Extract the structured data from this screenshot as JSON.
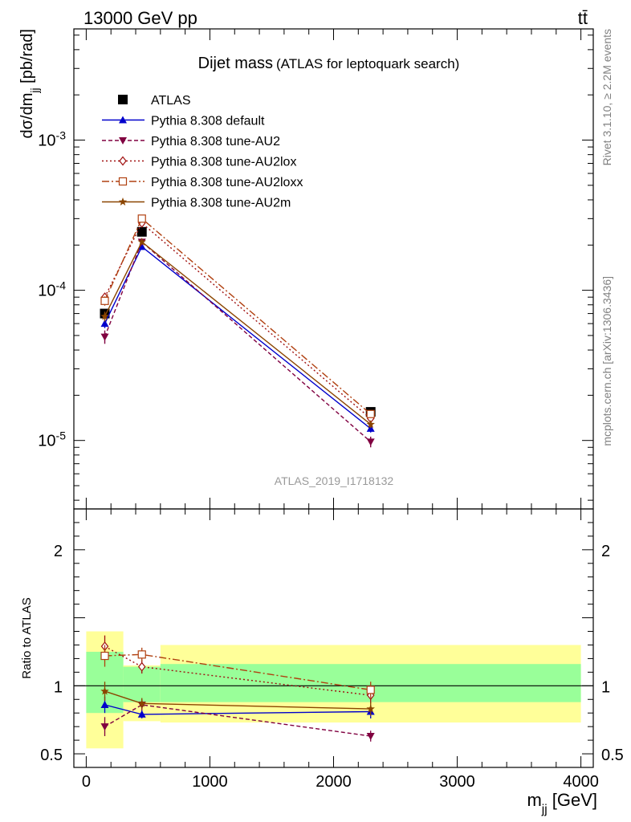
{
  "header": {
    "energy_label": "13000 GeV pp",
    "process_label": "tt̄"
  },
  "side_labels": {
    "rivet": "Rivet 3.1.10, ≥ 2.2M events",
    "source": "mcplots.cern.ch [arXiv:1306.3436]"
  },
  "watermark": "ATLAS_2019_I1718132",
  "colors": {
    "data": "#000000",
    "default": "#0000cc",
    "au2": "#800040",
    "au2lox": "#a01010",
    "au2loxx": "#b04010",
    "au2m": "#8b4500",
    "band_inner": "#99ff99",
    "band_outer": "#ffff99"
  },
  "chart_data": [
    {
      "type": "line",
      "title": "Dijet mass",
      "subtitle": "(ATLAS for leptoquark search)",
      "xlabel": "m_jj [GeV]",
      "ylabel": "dσ/dm_jj [pb/rad]",
      "yscale": "log",
      "xlim": [
        -100,
        4100
      ],
      "ylim": [
        3.5e-06,
        0.0055
      ],
      "y_ticks": [
        "10^-5",
        "10^-4",
        "10^-3"
      ],
      "x": [
        150,
        450,
        2300
      ],
      "series": [
        {
          "name": "ATLAS",
          "style": "data",
          "values": [
            7e-05,
            0.000245,
            1.55e-05
          ],
          "err_low": [
            0,
            0,
            0
          ],
          "err_high": [
            0,
            0,
            0
          ]
        },
        {
          "name": "Pythia 8.308 default",
          "style": "default",
          "values": [
            6e-05,
            0.000195,
            1.2e-05
          ],
          "err_low": [
            4e-06,
            7e-06,
            7e-07
          ],
          "err_high": [
            4e-06,
            7e-06,
            7e-07
          ]
        },
        {
          "name": "Pythia 8.308 tune-AU2",
          "style": "au2",
          "values": [
            4.9e-05,
            0.00021,
            9.8e-06
          ],
          "err_low": [
            5e-06,
            8e-06,
            8e-07
          ],
          "err_high": [
            5e-06,
            8e-06,
            8e-07
          ]
        },
        {
          "name": "Pythia 8.308 tune-AU2lox",
          "style": "au2lox",
          "values": [
            9e-05,
            0.00028,
            1.4e-05
          ],
          "err_low": [
            6e-06,
            1e-05,
            8e-07
          ],
          "err_high": [
            6e-06,
            1e-05,
            8e-07
          ]
        },
        {
          "name": "Pythia 8.308 tune-AU2loxx",
          "style": "au2loxx",
          "values": [
            8.5e-05,
            0.0003,
            1.5e-05
          ],
          "err_low": [
            6e-06,
            1e-05,
            8e-07
          ],
          "err_high": [
            6e-06,
            1e-05,
            8e-07
          ]
        },
        {
          "name": "Pythia 8.308 tune-AU2m",
          "style": "au2m",
          "values": [
            6.7e-05,
            0.00021,
            1.28e-05
          ],
          "err_low": [
            5e-06,
            8e-06,
            7e-07
          ],
          "err_high": [
            5e-06,
            8e-06,
            7e-07
          ]
        }
      ]
    },
    {
      "type": "line",
      "title": "",
      "xlabel": "m_jj [GeV]",
      "ylabel": "Ratio to ATLAS",
      "ylim": [
        0.4,
        2.3
      ],
      "y_ticks": [
        "0.5",
        "1",
        "2"
      ],
      "x_ticks": [
        "0",
        "1000",
        "2000",
        "3000",
        "4000"
      ],
      "reference": 1,
      "bands": [
        {
          "x_low": 0,
          "x_high": 300,
          "inner": [
            0.8,
            1.25
          ],
          "outer": [
            0.54,
            1.4
          ]
        },
        {
          "x_low": 300,
          "x_high": 600,
          "inner": [
            0.88,
            1.14
          ],
          "outer": [
            0.74,
            1.15
          ]
        },
        {
          "x_low": 600,
          "x_high": 4000,
          "inner": [
            0.88,
            1.16
          ],
          "outer": [
            0.73,
            1.3
          ]
        }
      ],
      "x": [
        150,
        450,
        2300
      ],
      "series": [
        {
          "name": "Pythia 8.308 default",
          "style": "default",
          "values": [
            0.86,
            0.79,
            0.81
          ],
          "err": [
            0.06,
            0.03,
            0.05
          ]
        },
        {
          "name": "Pythia 8.308 tune-AU2",
          "style": "au2",
          "values": [
            0.7,
            0.86,
            0.63
          ],
          "err": [
            0.07,
            0.04,
            0.04
          ]
        },
        {
          "name": "Pythia 8.308 tune-AU2lox",
          "style": "au2lox",
          "values": [
            1.29,
            1.14,
            0.93
          ],
          "err": [
            0.08,
            0.05,
            0.06
          ]
        },
        {
          "name": "Pythia 8.308 tune-AU2loxx",
          "style": "au2loxx",
          "values": [
            1.22,
            1.23,
            0.97
          ],
          "err": [
            0.08,
            0.05,
            0.06
          ]
        },
        {
          "name": "Pythia 8.308 tune-AU2m",
          "style": "au2m",
          "values": [
            0.96,
            0.87,
            0.83
          ],
          "err": [
            0.07,
            0.04,
            0.05
          ]
        }
      ]
    }
  ]
}
